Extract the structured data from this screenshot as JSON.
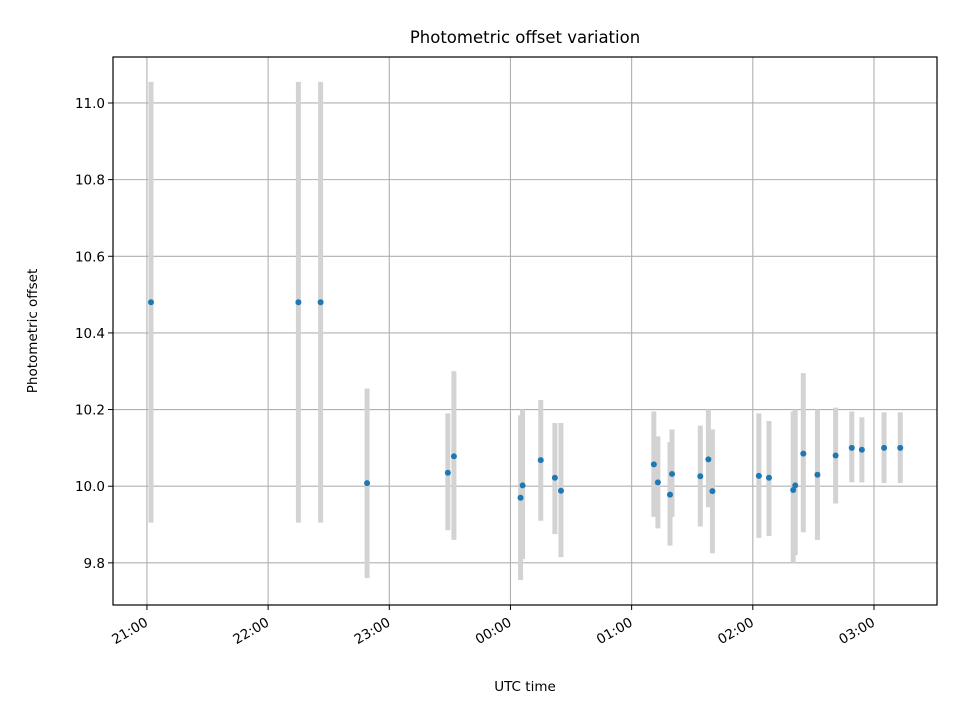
{
  "chart_data": {
    "type": "scatter",
    "title": "Photometric offset variation",
    "xlabel": "UTC time",
    "ylabel": "Photometric offset",
    "x_tick_labels": [
      "21:00",
      "22:00",
      "23:00",
      "00:00",
      "01:00",
      "02:00",
      "03:00"
    ],
    "y_tick_labels": [
      "9.8",
      "10.0",
      "10.2",
      "10.4",
      "10.6",
      "10.8",
      "11.0"
    ],
    "x_ticks_hours": [
      0,
      1,
      2,
      3,
      4,
      5,
      6
    ],
    "y_ticks": [
      9.8,
      10.0,
      10.2,
      10.4,
      10.6,
      10.8,
      11.0
    ],
    "xlim_hours_after_21h": [
      -0.28,
      6.52
    ],
    "ylim": [
      9.69,
      11.12
    ],
    "grid": true,
    "point_color": "#1f77b4",
    "errorbar_color": "#d3d3d3",
    "points": [
      {
        "t": "21:02",
        "y": 10.48,
        "lo": 9.905,
        "hi": 11.055
      },
      {
        "t": "22:15",
        "y": 10.48,
        "lo": 9.905,
        "hi": 11.055
      },
      {
        "t": "22:26",
        "y": 10.48,
        "lo": 9.905,
        "hi": 11.055
      },
      {
        "t": "22:49",
        "y": 10.008,
        "lo": 9.76,
        "hi": 10.255
      },
      {
        "t": "23:29",
        "y": 10.035,
        "lo": 9.885,
        "hi": 10.19
      },
      {
        "t": "23:32",
        "y": 10.078,
        "lo": 9.86,
        "hi": 10.3
      },
      {
        "t": "00:05",
        "y": 9.97,
        "lo": 9.755,
        "hi": 10.185
      },
      {
        "t": "00:06",
        "y": 10.002,
        "lo": 9.81,
        "hi": 10.2
      },
      {
        "t": "00:15",
        "y": 10.068,
        "lo": 9.91,
        "hi": 10.225
      },
      {
        "t": "00:22",
        "y": 10.022,
        "lo": 9.875,
        "hi": 10.165
      },
      {
        "t": "00:25",
        "y": 9.988,
        "lo": 9.815,
        "hi": 10.165
      },
      {
        "t": "01:11",
        "y": 10.057,
        "lo": 9.92,
        "hi": 10.195
      },
      {
        "t": "01:13",
        "y": 10.01,
        "lo": 9.89,
        "hi": 10.13
      },
      {
        "t": "01:19",
        "y": 9.978,
        "lo": 9.845,
        "hi": 10.115
      },
      {
        "t": "01:20",
        "y": 10.032,
        "lo": 9.92,
        "hi": 10.148
      },
      {
        "t": "01:34",
        "y": 10.026,
        "lo": 9.895,
        "hi": 10.158
      },
      {
        "t": "01:38",
        "y": 10.07,
        "lo": 9.945,
        "hi": 10.2
      },
      {
        "t": "01:40",
        "y": 9.987,
        "lo": 9.825,
        "hi": 10.148
      },
      {
        "t": "02:03",
        "y": 10.027,
        "lo": 9.865,
        "hi": 10.19
      },
      {
        "t": "02:08",
        "y": 10.022,
        "lo": 9.87,
        "hi": 10.17
      },
      {
        "t": "02:20",
        "y": 9.99,
        "lo": 9.8,
        "hi": 10.195
      },
      {
        "t": "02:21",
        "y": 10.002,
        "lo": 9.82,
        "hi": 10.2
      },
      {
        "t": "02:25",
        "y": 10.085,
        "lo": 9.88,
        "hi": 10.295
      },
      {
        "t": "02:32",
        "y": 10.03,
        "lo": 9.86,
        "hi": 10.2
      },
      {
        "t": "02:41",
        "y": 10.08,
        "lo": 9.955,
        "hi": 10.205
      },
      {
        "t": "02:49",
        "y": 10.1,
        "lo": 10.01,
        "hi": 10.195
      },
      {
        "t": "02:54",
        "y": 10.095,
        "lo": 10.01,
        "hi": 10.18
      },
      {
        "t": "03:05",
        "y": 10.1,
        "lo": 10.008,
        "hi": 10.193
      },
      {
        "t": "03:13",
        "y": 10.1,
        "lo": 10.008,
        "hi": 10.193
      }
    ]
  }
}
